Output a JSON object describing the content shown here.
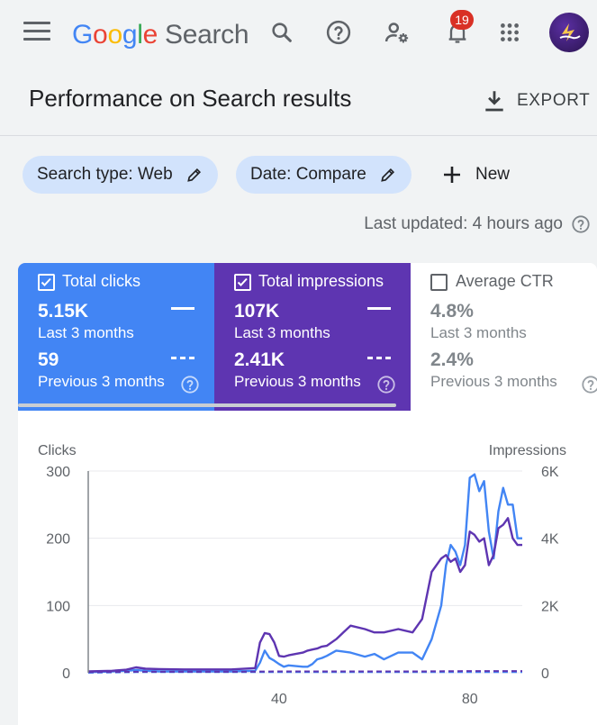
{
  "appbar": {
    "logo_letters": [
      "G",
      "o",
      "o",
      "g",
      "l",
      "e"
    ],
    "product_name": "Search",
    "notification_count": "19",
    "icons": [
      "menu-icon",
      "search-icon",
      "help-icon",
      "manage-accounts-icon",
      "notifications-icon",
      "apps-icon",
      "avatar"
    ]
  },
  "page": {
    "title": "Performance on Search results",
    "export_label": "EXPORT"
  },
  "filters": {
    "chips": [
      {
        "label": "Search type: Web"
      },
      {
        "label": "Date: Compare"
      }
    ],
    "new_label": "New"
  },
  "last_updated": "Last updated: 4 hours ago",
  "metrics": [
    {
      "title": "Total clicks",
      "checked": true,
      "current_value": "5.15K",
      "current_period": "Last 3 months",
      "previous_value": "59",
      "previous_period": "Previous 3 months",
      "color": "#4285f4"
    },
    {
      "title": "Total impressions",
      "checked": true,
      "current_value": "107K",
      "current_period": "Last 3 months",
      "previous_value": "2.41K",
      "previous_period": "Previous 3 months",
      "color": "#5e35b1"
    },
    {
      "title": "Average CTR",
      "checked": false,
      "current_value": "4.8%",
      "current_period": "Last 3 months",
      "previous_value": "2.4%",
      "previous_period": "Previous 3 months",
      "color": "#ffffff"
    }
  ],
  "chart_data": {
    "type": "line",
    "ylabel_left": "Clicks",
    "ylabel_right": "Impressions",
    "yticks_left": [
      "300",
      "200",
      "100",
      "0"
    ],
    "yticks_right": [
      "6K",
      "4K",
      "2K",
      "0"
    ],
    "ylim_left": [
      0,
      300
    ],
    "ylim_right": [
      0,
      6000
    ],
    "xticks": [
      "40",
      "80"
    ],
    "xlim": [
      0,
      91
    ],
    "grid": true,
    "series": [
      {
        "name": "Clicks",
        "axis": "left",
        "color": "#4285f4",
        "style": "solid",
        "x": [
          0,
          5,
          8,
          10,
          12,
          15,
          20,
          25,
          30,
          35,
          36,
          37,
          38,
          39,
          40,
          41,
          42,
          45,
          46,
          47,
          48,
          49,
          50,
          52,
          55,
          58,
          60,
          62,
          65,
          68,
          70,
          72,
          74,
          75,
          76,
          77,
          78,
          79,
          80,
          81,
          82,
          83,
          84,
          85,
          86,
          87,
          88,
          89,
          90,
          91
        ],
        "values": [
          1,
          2,
          3,
          4,
          3,
          2,
          2,
          2,
          2,
          3,
          15,
          33,
          22,
          18,
          13,
          9,
          11,
          9,
          9,
          13,
          20,
          22,
          25,
          33,
          30,
          24,
          28,
          20,
          30,
          30,
          20,
          50,
          100,
          160,
          190,
          180,
          160,
          190,
          290,
          295,
          270,
          285,
          210,
          170,
          240,
          275,
          250,
          250,
          200,
          200
        ]
      },
      {
        "name": "Impressions",
        "axis": "right",
        "color": "#5e35b1",
        "style": "solid",
        "x": [
          0,
          5,
          8,
          10,
          12,
          15,
          20,
          25,
          30,
          35,
          36,
          37,
          38,
          39,
          40,
          41,
          42,
          45,
          46,
          47,
          48,
          49,
          50,
          52,
          55,
          58,
          60,
          62,
          65,
          68,
          70,
          72,
          74,
          75,
          76,
          77,
          78,
          79,
          80,
          81,
          82,
          83,
          84,
          85,
          86,
          87,
          88,
          89,
          90,
          91
        ],
        "values": [
          40,
          60,
          90,
          160,
          120,
          110,
          100,
          100,
          100,
          140,
          900,
          1180,
          1150,
          900,
          500,
          480,
          520,
          600,
          660,
          690,
          720,
          780,
          800,
          1000,
          1400,
          1300,
          1200,
          1200,
          1300,
          1200,
          1600,
          3000,
          3400,
          3500,
          3300,
          3400,
          3000,
          3200,
          4200,
          4100,
          3900,
          4000,
          3200,
          3500,
          4300,
          4400,
          4600,
          4000,
          3800,
          3800
        ]
      },
      {
        "name": "Clicks (previous period)",
        "axis": "left",
        "color": "#4285f4",
        "style": "dashed",
        "x": [
          0,
          10,
          20,
          30,
          40,
          50,
          60,
          70,
          80,
          91
        ],
        "values": [
          0,
          1,
          1,
          1,
          1,
          1,
          1,
          1,
          1,
          1
        ]
      },
      {
        "name": "Impressions (previous period)",
        "axis": "right",
        "color": "#5e35b1",
        "style": "dashed",
        "x": [
          0,
          10,
          20,
          30,
          40,
          50,
          60,
          70,
          80,
          91
        ],
        "values": [
          20,
          30,
          30,
          30,
          40,
          40,
          40,
          40,
          50,
          50
        ]
      }
    ]
  }
}
